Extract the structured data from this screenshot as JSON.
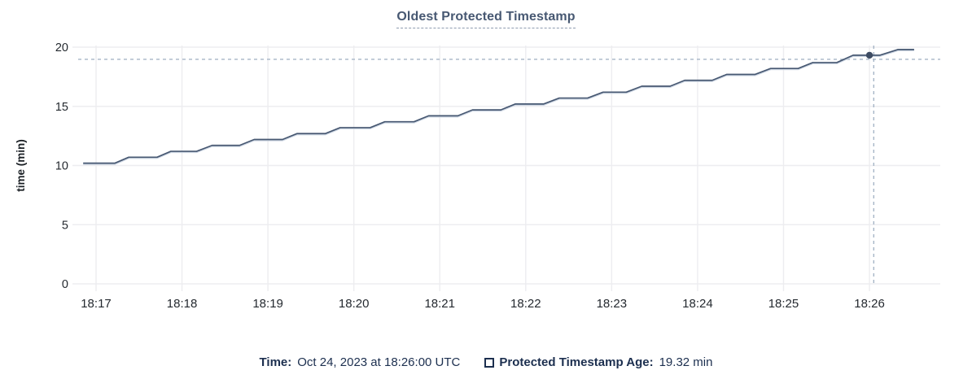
{
  "title": "Oldest Protected Timestamp",
  "footer": {
    "time_label": "Time:",
    "time_value": "Oct 24, 2023 at 18:26:00 UTC",
    "series_label": "Protected Timestamp Age:",
    "series_value": "19.32 min"
  },
  "chart_data": {
    "type": "line",
    "title": "Oldest Protected Timestamp",
    "xlabel": "",
    "ylabel": "time (min)",
    "ylim": [
      0,
      20
    ],
    "y_ticks": [
      0,
      5,
      10,
      15,
      20
    ],
    "x_tick_labels": [
      "18:17",
      "18:18",
      "18:19",
      "18:20",
      "18:21",
      "18:22",
      "18:23",
      "18:24",
      "18:25",
      "18:26"
    ],
    "x_window_minutes_after_1817": [
      -0.21,
      9.82
    ],
    "grid": true,
    "legend_position": "bottom",
    "series": [
      {
        "name": "Protected Timestamp Age",
        "unit": "min",
        "points": [
          [
            -0.15,
            10.2
          ],
          [
            0.22,
            10.2
          ],
          [
            0.38,
            10.7
          ],
          [
            0.71,
            10.7
          ],
          [
            0.87,
            11.2
          ],
          [
            1.17,
            11.2
          ],
          [
            1.35,
            11.7
          ],
          [
            1.67,
            11.7
          ],
          [
            1.84,
            12.2
          ],
          [
            2.17,
            12.2
          ],
          [
            2.34,
            12.7
          ],
          [
            2.67,
            12.7
          ],
          [
            2.84,
            13.2
          ],
          [
            3.19,
            13.2
          ],
          [
            3.36,
            13.7
          ],
          [
            3.7,
            13.7
          ],
          [
            3.87,
            14.2
          ],
          [
            4.21,
            14.2
          ],
          [
            4.38,
            14.7
          ],
          [
            4.71,
            14.7
          ],
          [
            4.88,
            15.2
          ],
          [
            5.21,
            15.2
          ],
          [
            5.39,
            15.7
          ],
          [
            5.72,
            15.7
          ],
          [
            5.9,
            16.2
          ],
          [
            6.17,
            16.2
          ],
          [
            6.35,
            16.7
          ],
          [
            6.68,
            16.7
          ],
          [
            6.85,
            17.2
          ],
          [
            7.17,
            17.2
          ],
          [
            7.34,
            17.7
          ],
          [
            7.67,
            17.7
          ],
          [
            7.85,
            18.2
          ],
          [
            8.17,
            18.2
          ],
          [
            8.34,
            18.7
          ],
          [
            8.62,
            18.7
          ],
          [
            8.81,
            19.32
          ],
          [
            9.12,
            19.32
          ],
          [
            9.33,
            19.8
          ],
          [
            9.52,
            19.8
          ]
        ]
      }
    ],
    "crosshair": {
      "hover_time": "18:26:00",
      "point_t_min_after_1817": 9.0,
      "point_value": 19.32,
      "vline_t_min_after_1817": 9.05,
      "hline_value": 18.97
    },
    "colors": {
      "line": "#475872",
      "line_halo": "#c9d3e0",
      "point": "#3d4c63",
      "crosshair": "#a6b5c6",
      "grid": "#ededf0",
      "axis_text": "#24292f",
      "title": "#475872",
      "footer_text": "#1c2f4f"
    }
  }
}
